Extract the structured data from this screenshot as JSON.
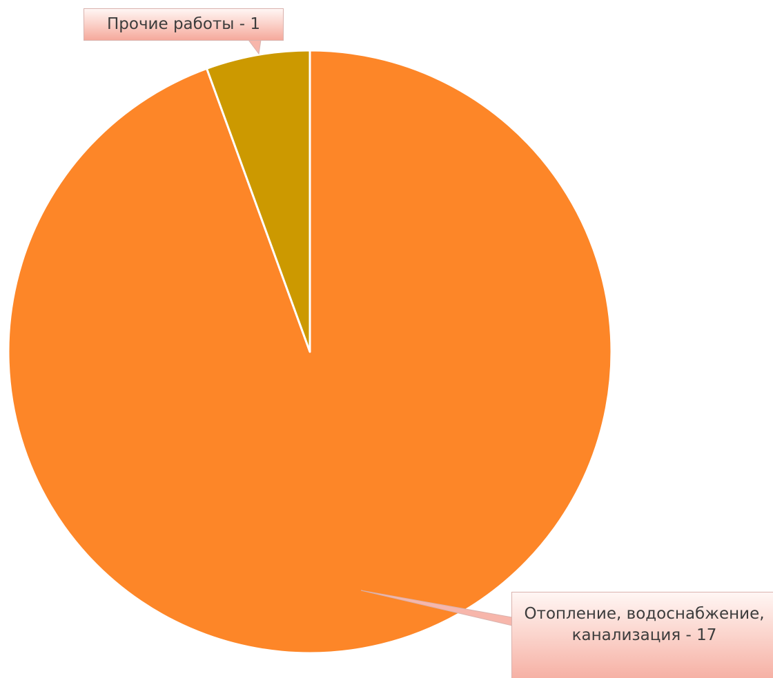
{
  "chart_data": {
    "type": "pie",
    "title": "",
    "start_angle": "top",
    "direction": "clockwise",
    "slices": [
      {
        "label": "Отопление, водоснабжение, канализация - 17",
        "value": 17,
        "color": "#fd8628"
      },
      {
        "label": "Прочие работы - 1",
        "value": 1,
        "color": "#cc9900"
      }
    ],
    "legend": "none"
  }
}
